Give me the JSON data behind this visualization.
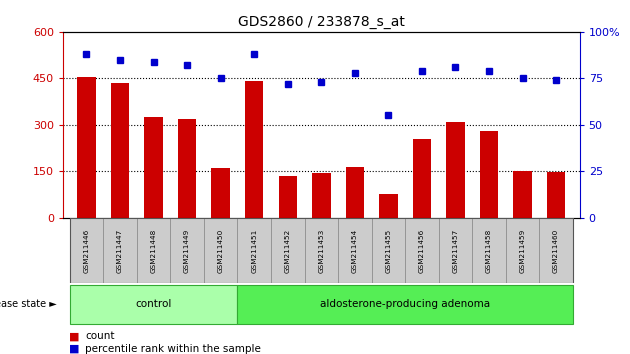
{
  "title": "GDS2860 / 233878_s_at",
  "categories": [
    "GSM211446",
    "GSM211447",
    "GSM211448",
    "GSM211449",
    "GSM211450",
    "GSM211451",
    "GSM211452",
    "GSM211453",
    "GSM211454",
    "GSM211455",
    "GSM211456",
    "GSM211457",
    "GSM211458",
    "GSM211459",
    "GSM211460"
  ],
  "bar_values": [
    455,
    435,
    325,
    320,
    160,
    440,
    135,
    145,
    165,
    75,
    255,
    310,
    280,
    150,
    148
  ],
  "percentile_values": [
    88,
    85,
    84,
    82,
    75,
    88,
    72,
    73,
    78,
    55,
    79,
    81,
    79,
    75,
    74
  ],
  "bar_color": "#cc0000",
  "point_color": "#0000cc",
  "ylim_left": [
    0,
    600
  ],
  "ylim_right": [
    0,
    100
  ],
  "yticks_left": [
    0,
    150,
    300,
    450,
    600
  ],
  "ytick_labels_left": [
    "0",
    "150",
    "300",
    "450",
    "600"
  ],
  "yticks_right": [
    0,
    25,
    50,
    75,
    100
  ],
  "ytick_labels_right": [
    "0",
    "25",
    "50",
    "75",
    "100%"
  ],
  "control_count": 5,
  "adenoma_count": 10,
  "control_label": "control",
  "adenoma_label": "aldosterone-producing adenoma",
  "disease_state_label": "disease state",
  "legend_bar_label": "count",
  "legend_point_label": "percentile rank within the sample",
  "control_color": "#aaffaa",
  "adenoma_color": "#55ee55",
  "tick_label_color_left": "#cc0000",
  "tick_label_color_right": "#0000cc",
  "bar_width": 0.55
}
